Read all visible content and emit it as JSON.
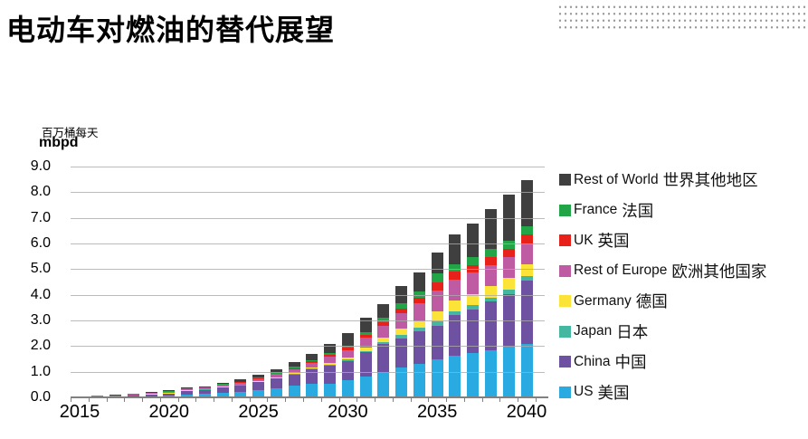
{
  "page": {
    "title": "电动车对燃油的替代展望"
  },
  "chart_data": {
    "type": "bar",
    "stacked": true,
    "title": "电动车对燃油的替代展望",
    "unit_label_zh": "百万桶每天",
    "unit_label_en": "mbpd",
    "ylim": [
      0,
      9
    ],
    "ytick_labels": [
      "9.0",
      "8.0",
      "7.0",
      "6.0",
      "5.0",
      "4.0",
      "3.0",
      "2.0",
      "1.0",
      "0.0"
    ],
    "xtick_labels": [
      "2015",
      "2020",
      "2025",
      "2030",
      "2035",
      "2040"
    ],
    "grid": true,
    "legend_position": "right",
    "years": [
      2015,
      2016,
      2017,
      2018,
      2019,
      2020,
      2021,
      2022,
      2023,
      2024,
      2025,
      2026,
      2027,
      2028,
      2029,
      2030,
      2031,
      2032,
      2033,
      2034,
      2035,
      2036,
      2037,
      2038,
      2039,
      2040
    ],
    "series": [
      {
        "name": "US",
        "name_zh": "美国",
        "color": "#29ABE2",
        "values": [
          0.005,
          0.015,
          0.02,
          0.03,
          0.045,
          0.06,
          0.11,
          0.13,
          0.18,
          0.215,
          0.275,
          0.35,
          0.45,
          0.52,
          0.53,
          0.67,
          0.8,
          0.94,
          1.16,
          1.3,
          1.47,
          1.62,
          1.74,
          1.83,
          1.97,
          2.1
        ]
      },
      {
        "name": "China",
        "name_zh": "中国",
        "color": "#6F51A1",
        "values": [
          0.005,
          0.02,
          0.03,
          0.04,
          0.06,
          0.08,
          0.14,
          0.17,
          0.21,
          0.25,
          0.31,
          0.38,
          0.44,
          0.57,
          0.69,
          0.75,
          0.95,
          1.15,
          1.15,
          1.28,
          1.33,
          1.58,
          1.7,
          1.9,
          2.05,
          2.45
        ]
      },
      {
        "name": "Japan",
        "name_zh": "日本",
        "color": "#43B7A0",
        "values": [
          0.001,
          0.003,
          0.004,
          0.006,
          0.008,
          0.01,
          0.01,
          0.012,
          0.014,
          0.016,
          0.02,
          0.024,
          0.028,
          0.034,
          0.045,
          0.05,
          0.06,
          0.07,
          0.12,
          0.13,
          0.17,
          0.17,
          0.17,
          0.17,
          0.18,
          0.18
        ]
      },
      {
        "name": "Germany",
        "name_zh": "德国",
        "color": "#FBE437",
        "values": [
          0.001,
          0.005,
          0.007,
          0.01,
          0.013,
          0.016,
          0.016,
          0.018,
          0.022,
          0.026,
          0.032,
          0.04,
          0.048,
          0.058,
          0.08,
          0.1,
          0.13,
          0.18,
          0.24,
          0.27,
          0.4,
          0.4,
          0.42,
          0.44,
          0.45,
          0.46
        ]
      },
      {
        "name": "Rest of Europe",
        "name_zh": "欧洲其他国家",
        "color": "#BE5BA3",
        "values": [
          0.002,
          0.012,
          0.016,
          0.026,
          0.036,
          0.046,
          0.04,
          0.045,
          0.055,
          0.068,
          0.085,
          0.11,
          0.14,
          0.17,
          0.24,
          0.26,
          0.38,
          0.46,
          0.6,
          0.7,
          0.8,
          0.82,
          0.83,
          0.82,
          0.82,
          0.82
        ]
      },
      {
        "name": "UK",
        "name_zh": "英国",
        "color": "#E8221A",
        "values": [
          0.001,
          0.004,
          0.006,
          0.009,
          0.012,
          0.015,
          0.013,
          0.014,
          0.017,
          0.021,
          0.026,
          0.033,
          0.042,
          0.052,
          0.08,
          0.1,
          0.12,
          0.14,
          0.18,
          0.22,
          0.3,
          0.3,
          0.3,
          0.31,
          0.32,
          0.33
        ]
      },
      {
        "name": "France",
        "name_zh": "法国",
        "color": "#22A546",
        "values": [
          0.001,
          0.004,
          0.006,
          0.009,
          0.012,
          0.015,
          0.013,
          0.014,
          0.017,
          0.021,
          0.026,
          0.033,
          0.042,
          0.052,
          0.075,
          0.1,
          0.12,
          0.16,
          0.22,
          0.24,
          0.36,
          0.3,
          0.31,
          0.32,
          0.33,
          0.34
        ]
      },
      {
        "name": "Rest of World",
        "name_zh": "世界其他地区",
        "color": "#3F3F3F",
        "values": [
          0.004,
          0.015,
          0.021,
          0.03,
          0.044,
          0.048,
          0.035,
          0.04,
          0.06,
          0.08,
          0.105,
          0.14,
          0.18,
          0.24,
          0.36,
          0.48,
          0.54,
          0.54,
          0.66,
          0.72,
          0.81,
          1.16,
          1.31,
          1.55,
          1.79,
          1.8
        ]
      }
    ],
    "legend_note": "legend shown top-to-bottom in reverse stacking order: Rest of World, France, UK, Rest of Europe, Germany, Japan, China, US"
  },
  "decor": {
    "dot_pattern_color": "#9a9a9a"
  }
}
